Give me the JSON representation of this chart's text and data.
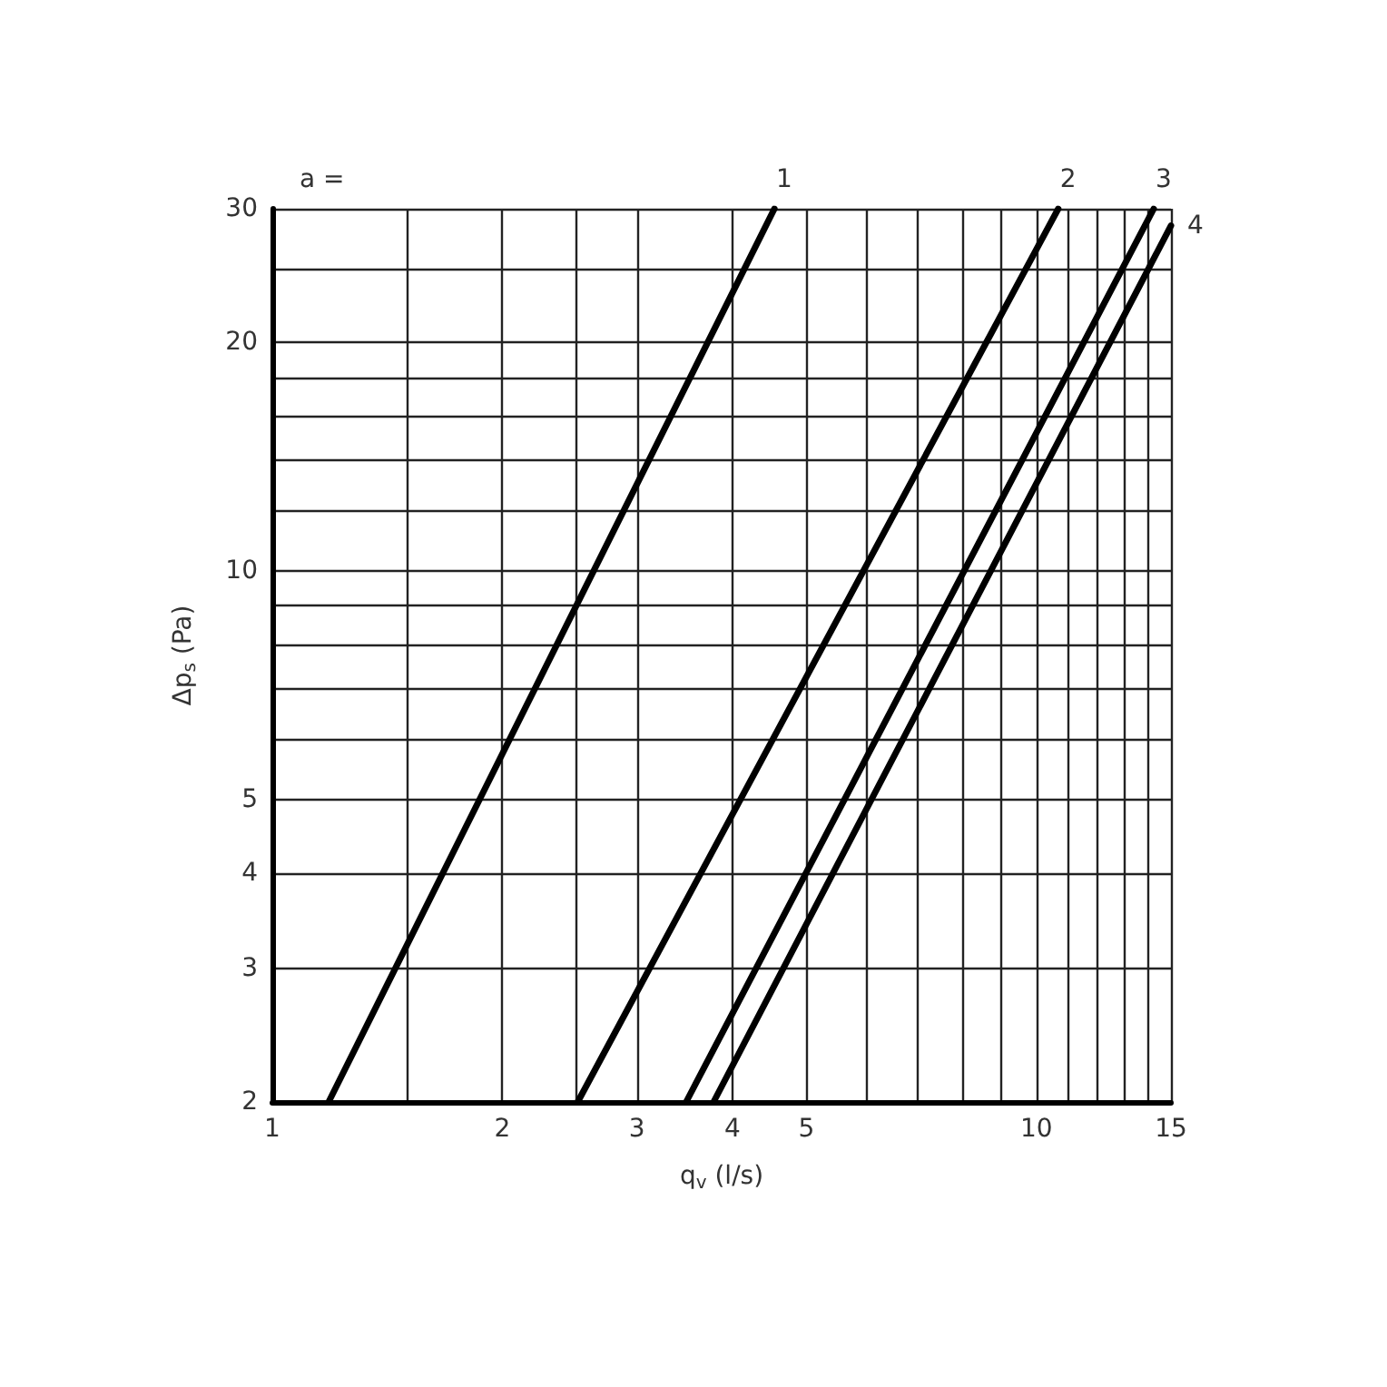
{
  "chart_data": {
    "type": "line",
    "xlabel": "q$_{v}$ (l/s)",
    "ylabel": "Δp$_{s}$ (Pa)",
    "log": "xy",
    "xlim": [
      1,
      15
    ],
    "ylim": [
      2,
      30
    ],
    "xticks": [
      1,
      {
        "value": 1.5,
        "label": null
      },
      2,
      {
        "value": 2.5,
        "label": null
      },
      3,
      4,
      5,
      {
        "value": 6,
        "label": null
      },
      {
        "value": 7,
        "label": null
      },
      {
        "value": 8,
        "label": null
      },
      {
        "value": 9,
        "label": null
      },
      10,
      {
        "value": 11,
        "label": null
      },
      {
        "value": 12,
        "label": null
      },
      {
        "value": 13,
        "label": null
      },
      {
        "value": 14,
        "label": null
      },
      15
    ],
    "yticks": [
      2,
      3,
      4,
      5,
      {
        "value": 6,
        "label": null
      },
      {
        "value": 7,
        "label": null
      },
      {
        "value": 8,
        "label": null
      },
      {
        "value": 9,
        "label": null
      },
      10,
      {
        "value": 12,
        "label": null
      },
      {
        "value": 14,
        "label": null
      },
      {
        "value": 16,
        "label": null
      },
      {
        "value": 18,
        "label": null
      },
      20,
      {
        "value": 25,
        "label": null
      },
      30
    ],
    "grid": true,
    "legend": false,
    "marker": "none",
    "line_style": "solid",
    "annotations": [
      "a ="
    ],
    "series": [
      {
        "name": "1",
        "color": "#000000",
        "x": [
          1.185,
          4.54
        ],
        "values": [
          2,
          30
        ]
      },
      {
        "name": "2",
        "color": "#000000",
        "x": [
          2.51,
          10.68
        ],
        "values": [
          2,
          30
        ]
      },
      {
        "name": "3",
        "color": "#000000",
        "x": [
          3.48,
          14.24
        ],
        "values": [
          2,
          30
        ]
      },
      {
        "name": "4",
        "color": "#000000",
        "x": [
          3.78,
          15
        ],
        "values": [
          2,
          28.5
        ]
      }
    ]
  }
}
